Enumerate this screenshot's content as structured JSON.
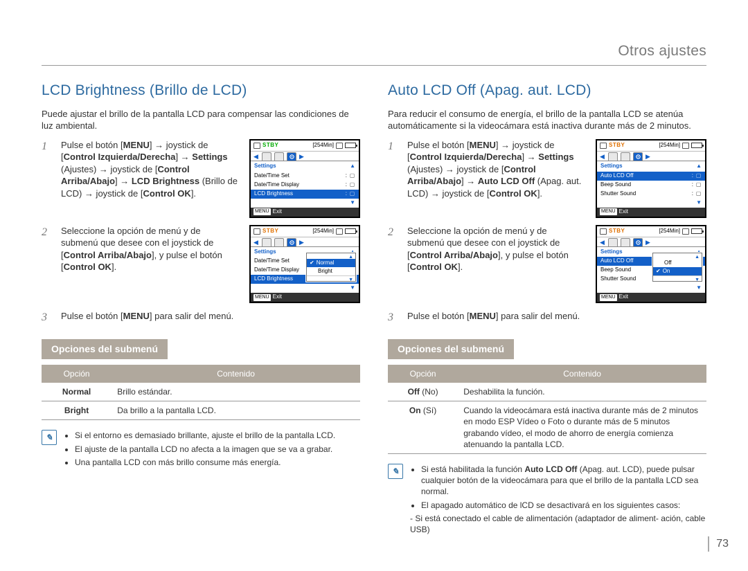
{
  "running_head": "Otros ajustes",
  "page_number": "73",
  "left": {
    "heading": "LCD Brightness (Brillo de LCD)",
    "intro": "Puede ajustar el brillo de la pantalla LCD para compensar las condiciones de luz ambiental.",
    "step1_html": "Pulse el botón [<b>MENU</b>] → joystick de [<b>Control Izquierda/Derecha</b>] → <b>Settings</b> (Ajustes) → joystick de [<b>Control Arriba/Abajo</b>] → <b>LCD Brightness</b> (Brillo de LCD) → joystick de [<b>Control OK</b>].",
    "step2_html": "Seleccione la opción de menú y de submenú que desee con el joystick de [<b>Control Arriba/Abajo</b>], y pulse el botón [<b>Control OK</b>].",
    "step3_html": "Pulse el botón [<b>MENU</b>] para salir del menú.",
    "submenu_label": "Opciones del submenú",
    "table": {
      "th1": "Opción",
      "th2": "Contenido",
      "rows": [
        {
          "opt_html": "<b>Normal</b>",
          "desc": "Brillo estándar."
        },
        {
          "opt_html": "<b>Bright</b>",
          "desc": "Da brillo a la pantalla LCD."
        }
      ]
    },
    "notes": [
      "Si el entorno es demasiado brillante, ajuste el brillo de la pantalla LCD.",
      "El ajuste de la pantalla LCD no afecta a la imagen que se va a grabar.",
      "Una pantalla LCD con más brillo consume más energía."
    ],
    "lcd1": {
      "stby": "STBY",
      "time": "[254Min]",
      "menu_head": "Settings",
      "items": [
        {
          "label": "Date/Time Set"
        },
        {
          "label": "Date/Time Display"
        },
        {
          "label": "LCD Brightness",
          "hl": true
        }
      ],
      "exit": "Exit",
      "menu_btn": "MENU"
    },
    "lcd2": {
      "stby": "STBY",
      "time": "[254Min]",
      "menu_head": "Settings",
      "items": [
        {
          "label": "Date/Time Set"
        },
        {
          "label": "Date/Time Display"
        },
        {
          "label": "LCD Brightness",
          "hl": true
        }
      ],
      "popup": [
        {
          "label": "Normal",
          "hl": true
        },
        {
          "label": "Bright"
        }
      ],
      "exit": "Exit",
      "menu_btn": "MENU"
    }
  },
  "right": {
    "heading": "Auto LCD Off (Apag. aut. LCD)",
    "intro": "Para reducir el consumo de energía, el brillo de la pantalla LCD se atenúa automáticamente si la videocámara está inactiva durante más de 2 minutos.",
    "step1_html": "Pulse el botón [<b>MENU</b>] → joystick de [<b>Control Izquierda/Derecha</b>] → <b>Settings</b> (Ajustes) → joystick de [<b>Control Arriba/Abajo</b>] → <b>Auto LCD Off</b> (Apag. aut. LCD) → joystick de [<b>Control OK</b>].",
    "step2_html": "Seleccione la opción de menú y de submenú que desee con el joystick de [<b>Control Arriba/Abajo</b>], y pulse el botón [<b>Control OK</b>].",
    "step3_html": "Pulse el botón [<b>MENU</b>] para salir del menú.",
    "submenu_label": "Opciones del submenú",
    "table": {
      "th1": "Opción",
      "th2": "Contenido",
      "rows": [
        {
          "opt_html": "<b>Off</b> (No)",
          "desc": "Deshabilita la función."
        },
        {
          "opt_html": "<b>On</b> (Sí)",
          "desc": "Cuando la videocámara está inactiva durante más de 2 minutos en modo ESP Vídeo o Foto o durante más de 5 minutos grabando vídeo, el modo de ahorro de energía comienza atenuando la pantalla LCD."
        }
      ]
    },
    "notes": [
      "Si está habilitada la función <b>Auto LCD Off</b> (Apag. aut. LCD), puede pulsar cualquier botón de la videocámara para que el brillo de la pantalla LCD sea normal.",
      "El apagado automático de lCD se desactivará en los siguientes casos:"
    ],
    "note_sub": "- Si está conectado el cable de alimentación (adaptador de aliment- ación, cable USB)",
    "lcd1": {
      "stby": "STBY",
      "time": "[254Min]",
      "menu_head": "Settings",
      "items": [
        {
          "label": "Auto LCD Off",
          "hl": true
        },
        {
          "label": "Beep Sound"
        },
        {
          "label": "Shutter Sound"
        }
      ],
      "exit": "Exit",
      "menu_btn": "MENU"
    },
    "lcd2": {
      "stby": "STBY",
      "time": "[254Min]",
      "menu_head": "Settings",
      "items": [
        {
          "label": "Auto LCD Off",
          "hl": true
        },
        {
          "label": "Beep Sound"
        },
        {
          "label": "Shutter Sound"
        }
      ],
      "popup": [
        {
          "label": "Off"
        },
        {
          "label": "On",
          "hl": true
        }
      ],
      "exit": "Exit",
      "menu_btn": "MENU"
    }
  },
  "colors": {
    "accent_blue": "#2d6aa0",
    "tab_blue": "#1360c8",
    "submenu_bg": "#b0a89d",
    "stby_green": "#00aa00",
    "stby_orange": "#e07000"
  }
}
